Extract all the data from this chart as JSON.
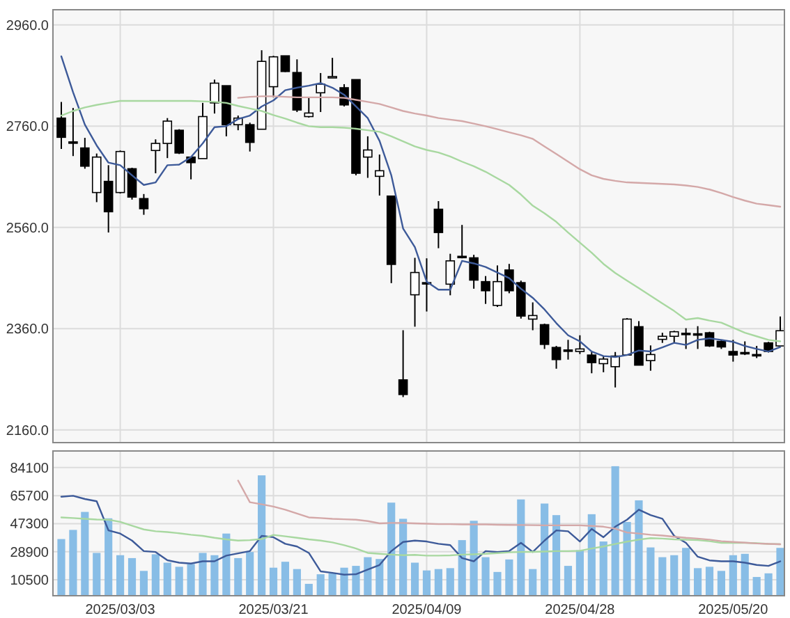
{
  "chart_data": [
    {
      "type": "candlestick",
      "categories": [
        null,
        null,
        null,
        null,
        null,
        "2025/03/03",
        null,
        null,
        null,
        null,
        null,
        null,
        null,
        null,
        null,
        null,
        null,
        null,
        "2025/03/21",
        null,
        null,
        null,
        null,
        null,
        null,
        null,
        null,
        null,
        null,
        null,
        null,
        "2025/04/09",
        null,
        null,
        null,
        null,
        null,
        null,
        null,
        null,
        null,
        null,
        null,
        null,
        "2025/04/28",
        null,
        null,
        null,
        null,
        null,
        null,
        null,
        null,
        null,
        null,
        null,
        null,
        "2025/05/20",
        null,
        null,
        null,
        null
      ],
      "ohlc": [
        [
          2776,
          2808,
          2715,
          2738
        ],
        [
          2729,
          2796,
          2701,
          2727
        ],
        [
          2717,
          2737,
          2676,
          2681
        ],
        [
          2629,
          2706,
          2610,
          2699
        ],
        [
          2651,
          2683,
          2550,
          2591
        ],
        [
          2629,
          2712,
          2627,
          2710
        ],
        [
          2676,
          2678,
          2615,
          2620
        ],
        [
          2617,
          2626,
          2585,
          2597
        ],
        [
          2712,
          2734,
          2667,
          2726
        ],
        [
          2726,
          2776,
          2697,
          2770
        ],
        [
          2752,
          2754,
          2705,
          2707
        ],
        [
          2699,
          2699,
          2655,
          2688
        ],
        [
          2696,
          2806,
          2696,
          2779
        ],
        [
          2806,
          2852,
          2785,
          2845
        ],
        [
          2840,
          2840,
          2740,
          2763
        ],
        [
          2763,
          2781,
          2752,
          2776
        ],
        [
          2763,
          2767,
          2710,
          2728
        ],
        [
          2754,
          2910,
          2754,
          2888
        ],
        [
          2838,
          2899,
          2817,
          2897
        ],
        [
          2899,
          2899,
          2867,
          2868
        ],
        [
          2866,
          2892,
          2788,
          2792
        ],
        [
          2779,
          2818,
          2777,
          2786
        ],
        [
          2826,
          2865,
          2788,
          2843
        ],
        [
          2857,
          2895,
          2856,
          2858
        ],
        [
          2836,
          2843,
          2799,
          2802
        ],
        [
          2852,
          2852,
          2663,
          2667
        ],
        [
          2699,
          2740,
          2658,
          2713
        ],
        [
          2661,
          2704,
          2623,
          2672
        ],
        [
          2622,
          2622,
          2450,
          2487
        ],
        [
          2259,
          2357,
          2225,
          2230
        ],
        [
          2427,
          2500,
          2364,
          2471
        ],
        [
          2451,
          2499,
          2394,
          2449
        ],
        [
          2596,
          2612,
          2519,
          2550
        ],
        [
          2448,
          2508,
          2426,
          2494
        ],
        [
          2503,
          2565,
          2499,
          2502
        ],
        [
          2500,
          2506,
          2439,
          2456
        ],
        [
          2453,
          2464,
          2409,
          2435
        ],
        [
          2406,
          2485,
          2403,
          2453
        ],
        [
          2476,
          2488,
          2430,
          2435
        ],
        [
          2451,
          2455,
          2380,
          2385
        ],
        [
          2379,
          2412,
          2357,
          2386
        ],
        [
          2368,
          2370,
          2320,
          2329
        ],
        [
          2323,
          2326,
          2281,
          2299
        ],
        [
          2318,
          2338,
          2299,
          2317
        ],
        [
          2315,
          2347,
          2310,
          2320
        ],
        [
          2308,
          2314,
          2272,
          2293
        ],
        [
          2291,
          2306,
          2274,
          2300
        ],
        [
          2285,
          2314,
          2244,
          2306
        ],
        [
          2308,
          2381,
          2308,
          2379
        ],
        [
          2364,
          2375,
          2288,
          2288
        ],
        [
          2297,
          2327,
          2277,
          2309
        ],
        [
          2339,
          2352,
          2332,
          2345
        ],
        [
          2345,
          2356,
          2332,
          2354
        ],
        [
          2351,
          2361,
          2320,
          2349
        ],
        [
          2350,
          2365,
          2320,
          2349
        ],
        [
          2352,
          2354,
          2324,
          2326
        ],
        [
          2335,
          2338,
          2320,
          2324
        ],
        [
          2315,
          2338,
          2295,
          2308
        ],
        [
          2313,
          2335,
          2308,
          2312
        ],
        [
          2309,
          2326,
          2302,
          2308
        ],
        [
          2332,
          2334,
          2313,
          2315
        ],
        [
          2326,
          2384,
          2326,
          2356
        ]
      ],
      "series": [
        {
          "type": "line",
          "color": "#3d5a99",
          "values": [
            2898,
            2827,
            2763,
            2722,
            2688,
            2683,
            2663,
            2644,
            2649,
            2683,
            2684,
            2699,
            2726,
            2758,
            2760,
            2774,
            2781,
            2799,
            2811,
            2831,
            2836,
            2840,
            2845,
            2836,
            2822,
            2799,
            2776,
            2731,
            2663,
            2558,
            2521,
            2453,
            2437,
            2437,
            2494,
            2489,
            2482,
            2471,
            2460,
            2439,
            2421,
            2398,
            2371,
            2347,
            2335,
            2315,
            2306,
            2304,
            2308,
            2317,
            2315,
            2323,
            2332,
            2328,
            2338,
            2341,
            2338,
            2334,
            2326,
            2320,
            2315,
            2324
          ]
        },
        {
          "type": "line",
          "color": "#a8d8a0",
          "values": [
            2781,
            2790,
            2797,
            2802,
            2806,
            2810,
            2810,
            2810,
            2810,
            2810,
            2810,
            2810,
            2809,
            2808,
            2806,
            2800,
            2795,
            2790,
            2782,
            2775,
            2767,
            2760,
            2758,
            2758,
            2757,
            2755,
            2752,
            2749,
            2740,
            2730,
            2720,
            2713,
            2708,
            2700,
            2690,
            2681,
            2670,
            2657,
            2644,
            2625,
            2603,
            2588,
            2571,
            2550,
            2530,
            2510,
            2488,
            2470,
            2455,
            2440,
            2425,
            2410,
            2395,
            2378,
            2381,
            2376,
            2372,
            2362,
            2352,
            2345,
            2338,
            2335
          ]
        },
        {
          "type": "line",
          "color": "#d4a8a8",
          "values": [
            null,
            null,
            null,
            null,
            null,
            null,
            null,
            null,
            null,
            null,
            null,
            null,
            null,
            null,
            null,
            2816,
            2818,
            2819,
            2819,
            2818,
            2817,
            2817,
            2817,
            2817,
            2816,
            2812,
            2808,
            2804,
            2797,
            2790,
            2785,
            2781,
            2776,
            2773,
            2770,
            2765,
            2760,
            2754,
            2748,
            2742,
            2735,
            2720,
            2705,
            2690,
            2675,
            2663,
            2656,
            2652,
            2649,
            2648,
            2647,
            2646,
            2645,
            2643,
            2640,
            2635,
            2628,
            2620,
            2613,
            2607,
            2604,
            2601
          ]
        }
      ],
      "ylim": [
        2135,
        2990
      ],
      "yticks": [
        {
          "value": 2160,
          "label": "2160.0"
        },
        {
          "value": 2360,
          "label": "2360.0"
        },
        {
          "value": 2560,
          "label": "2560.0"
        },
        {
          "value": 2760,
          "label": "2760.0"
        },
        {
          "value": 2960,
          "label": "2960.0"
        }
      ],
      "grid": true,
      "tick_labels": "y"
    },
    {
      "type": "bar",
      "categories": [
        null,
        null,
        null,
        null,
        null,
        "2025/03/03",
        null,
        null,
        null,
        null,
        null,
        null,
        null,
        null,
        null,
        null,
        null,
        null,
        "2025/03/21",
        null,
        null,
        null,
        null,
        null,
        null,
        null,
        null,
        null,
        null,
        null,
        null,
        "2025/04/09",
        null,
        null,
        null,
        null,
        null,
        null,
        null,
        null,
        null,
        null,
        null,
        null,
        "2025/04/28",
        null,
        null,
        null,
        null,
        null,
        null,
        null,
        null,
        null,
        null,
        null,
        null,
        "2025/05/20",
        null,
        null,
        null,
        null
      ],
      "series": [
        {
          "type": "bar",
          "color": "#88bde6",
          "values": [
            37200,
            43200,
            55000,
            28100,
            50800,
            26600,
            24700,
            16300,
            27200,
            21700,
            19000,
            20800,
            28100,
            26600,
            40800,
            24700,
            28700,
            79000,
            18400,
            22300,
            17500,
            7800,
            14100,
            14700,
            18400,
            19600,
            25300,
            24100,
            61100,
            50500,
            21700,
            16600,
            17500,
            18100,
            36500,
            49200,
            25300,
            15600,
            23800,
            63200,
            17500,
            60500,
            52900,
            19600,
            29900,
            53500,
            35600,
            85000,
            48400,
            62600,
            31700,
            25300,
            26600,
            31400,
            18100,
            19000,
            16300,
            26600,
            27500,
            12300,
            14700,
            31400
          ]
        },
        {
          "type": "line",
          "color": "#3d5a99",
          "values": [
            65000,
            65600,
            63500,
            62000,
            42900,
            40800,
            36200,
            29300,
            28700,
            23300,
            21700,
            21100,
            22600,
            22600,
            26300,
            27800,
            29300,
            39300,
            38400,
            34100,
            32300,
            28100,
            16000,
            15000,
            13800,
            14100,
            17200,
            20200,
            29300,
            35300,
            36200,
            35600,
            34100,
            33200,
            24700,
            22600,
            29300,
            28700,
            29300,
            34700,
            28700,
            36200,
            42900,
            42300,
            35600,
            43800,
            38400,
            45300,
            49900,
            56500,
            52900,
            50500,
            39300,
            34700,
            25600,
            23200,
            22600,
            22600,
            21700,
            20200,
            19600,
            22600
          ]
        },
        {
          "type": "line",
          "color": "#a8d8a0",
          "values": [
            51400,
            51000,
            50500,
            50000,
            49900,
            48500,
            46000,
            43500,
            42300,
            41800,
            41000,
            40000,
            39300,
            38000,
            37000,
            36200,
            36500,
            37200,
            39900,
            39000,
            38000,
            37000,
            36200,
            35000,
            33200,
            31000,
            28100,
            27500,
            27000,
            26600,
            26800,
            26300,
            26300,
            26500,
            27000,
            27200,
            27500,
            28000,
            28500,
            28700,
            28800,
            29000,
            29300,
            29300,
            29500,
            31000,
            32300,
            34000,
            35500,
            36800,
            37800,
            37500,
            37000,
            36800,
            36500,
            35800,
            34700,
            34700,
            34700,
            34500,
            34000,
            33800
          ]
        },
        {
          "type": "line",
          "color": "#d4a8a8",
          "values": [
            null,
            null,
            null,
            null,
            null,
            null,
            null,
            null,
            null,
            null,
            null,
            null,
            null,
            null,
            null,
            75600,
            61400,
            60000,
            58500,
            56500,
            54000,
            51400,
            51000,
            50500,
            50200,
            49900,
            49000,
            47500,
            47800,
            47800,
            47500,
            47300,
            47000,
            47000,
            46800,
            46800,
            46800,
            46600,
            46500,
            46400,
            46300,
            46200,
            46200,
            46200,
            46200,
            45800,
            45300,
            44000,
            41500,
            40800,
            40000,
            39500,
            38700,
            38000,
            37500,
            36800,
            35800,
            35300,
            34800,
            34300,
            34000,
            33800
          ]
        }
      ],
      "ylim": [
        0,
        95000
      ],
      "yticks": [
        10500,
        28900,
        47300,
        65700,
        84100
      ],
      "grid": true
    }
  ]
}
